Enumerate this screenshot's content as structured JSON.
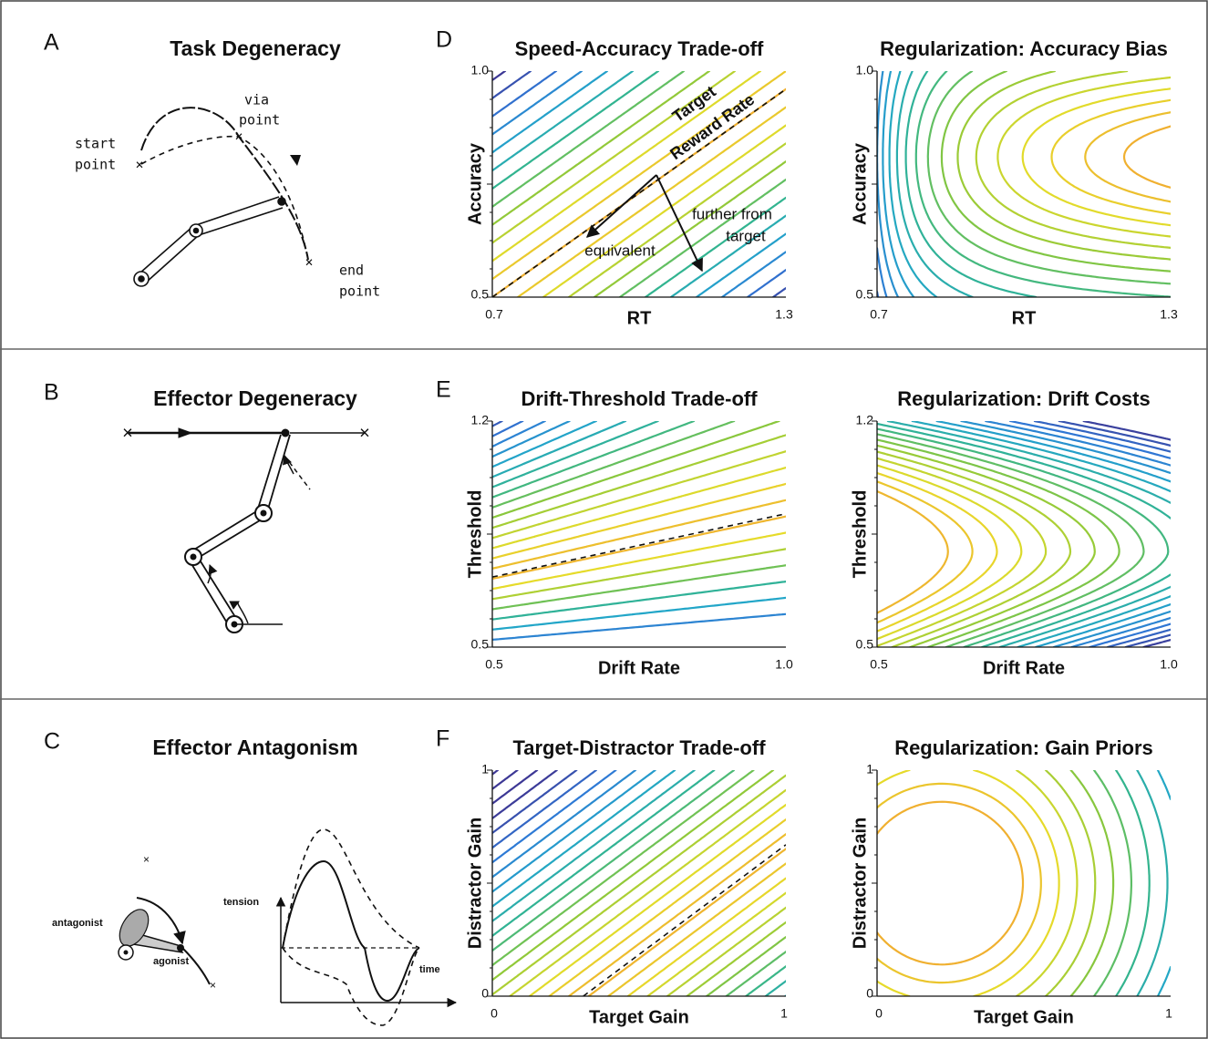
{
  "rows": [
    {
      "letter": "A",
      "title": "Task Degeneracy",
      "sketch_labels": [
        "via",
        "point",
        "start",
        "point",
        "end",
        "point"
      ],
      "plot_letter": "D",
      "plots": [
        {
          "title": "Speed-Accuracy Trade-off",
          "xlabel": "RT",
          "ylabel": "Accuracy",
          "xticks": [
            "0.7",
            "1.3"
          ],
          "yticks": [
            "1.0",
            "0.5"
          ],
          "annotations": [
            "Target",
            "Reward Rate",
            "equivalent",
            "further from",
            "target"
          ]
        },
        {
          "title": "Regularization: Accuracy Bias",
          "xlabel": "RT",
          "ylabel": "Accuracy",
          "xticks": [
            "0.7",
            "1.3"
          ],
          "yticks": [
            "1.0",
            "0.5"
          ]
        }
      ]
    },
    {
      "letter": "B",
      "title": "Effector Degeneracy",
      "plot_letter": "E",
      "plots": [
        {
          "title": "Drift-Threshold Trade-off",
          "xlabel": "Drift Rate",
          "ylabel": "Threshold",
          "xticks": [
            "0.5",
            "1.0"
          ],
          "yticks": [
            "1.2",
            "0.5"
          ]
        },
        {
          "title": "Regularization: Drift Costs",
          "xlabel": "Drift Rate",
          "ylabel": "Threshold",
          "xticks": [
            "0.5",
            "1.0"
          ],
          "yticks": [
            "1.2",
            "0.5"
          ]
        }
      ]
    },
    {
      "letter": "C",
      "title": "Effector Antagonism",
      "sketch_labels": [
        "antagonist",
        "agonist",
        "tension",
        "time"
      ],
      "plot_letter": "F",
      "plots": [
        {
          "title": "Target-Distractor Trade-off",
          "xlabel": "Target Gain",
          "ylabel": "Distractor Gain",
          "xticks": [
            "0",
            "1"
          ],
          "yticks": [
            "1",
            "0"
          ]
        },
        {
          "title": "Regularization: Gain Priors",
          "xlabel": "Target Gain",
          "ylabel": "Distractor Gain",
          "xticks": [
            "0",
            "1"
          ],
          "yticks": [
            "1",
            "0"
          ]
        }
      ]
    }
  ]
}
